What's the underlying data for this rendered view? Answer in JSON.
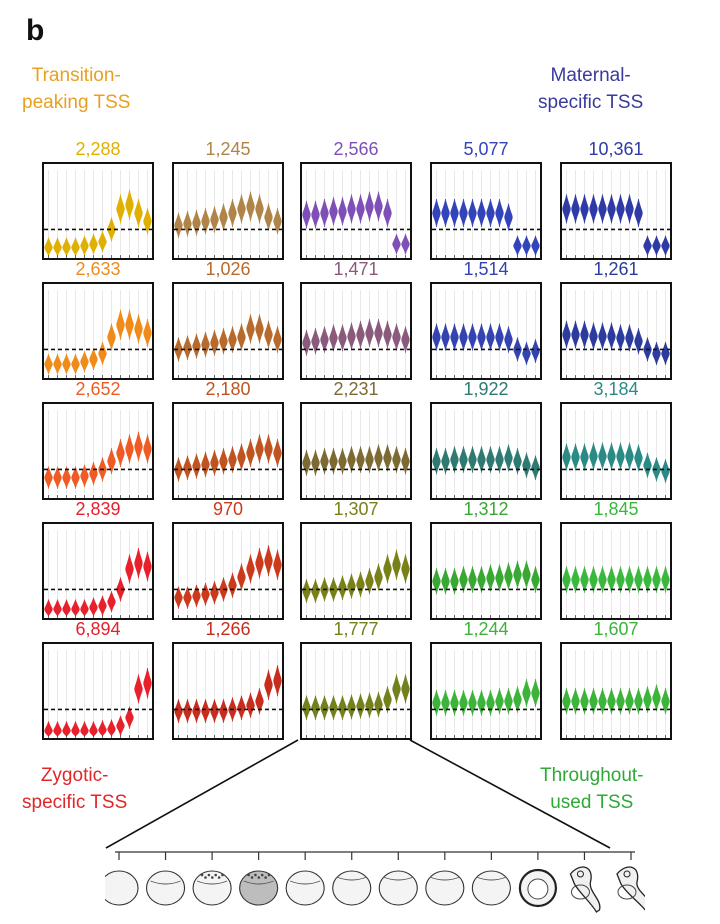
{
  "panel_label": "b",
  "corner_labels": {
    "top_left": [
      "Transition-",
      "peaking TSS"
    ],
    "top_right": [
      "Maternal-",
      "specific TSS"
    ],
    "bottom_left": [
      "Zygotic-",
      "specific TSS"
    ],
    "bottom_right": [
      "Throughout-",
      "used TSS"
    ]
  },
  "colors": {
    "top_left_label": "#e8a020",
    "top_right_label": "#3a3a9c",
    "bottom_left_label": "#e02828",
    "bottom_right_label": "#2ea836"
  },
  "chart_data": {
    "type": "violin-grid",
    "rows": 5,
    "cols": 5,
    "stages": 12,
    "baseline": 0.3,
    "ylim": [
      0,
      1
    ],
    "cells": [
      {
        "label": "2,288",
        "color": "#e0b000",
        "values": [
          0.08,
          0.08,
          0.08,
          0.08,
          0.1,
          0.12,
          0.15,
          0.3,
          0.55,
          0.6,
          0.5,
          0.4
        ]
      },
      {
        "label": "1,245",
        "color": "#b08448",
        "values": [
          0.35,
          0.37,
          0.38,
          0.4,
          0.42,
          0.45,
          0.5,
          0.55,
          0.58,
          0.55,
          0.45,
          0.4
        ]
      },
      {
        "label": "2,566",
        "color": "#7e4fb8",
        "values": [
          0.48,
          0.48,
          0.5,
          0.52,
          0.52,
          0.55,
          0.55,
          0.58,
          0.58,
          0.5,
          0.12,
          0.12
        ]
      },
      {
        "label": "5,077",
        "color": "#3344bb",
        "values": [
          0.5,
          0.5,
          0.5,
          0.5,
          0.5,
          0.5,
          0.5,
          0.5,
          0.45,
          0.1,
          0.1,
          0.1
        ]
      },
      {
        "label": "10,361",
        "color": "#2e3aa6",
        "values": [
          0.55,
          0.55,
          0.55,
          0.55,
          0.55,
          0.55,
          0.55,
          0.55,
          0.5,
          0.1,
          0.1,
          0.1
        ]
      },
      {
        "label": "2,633",
        "color": "#f08a18",
        "values": [
          0.12,
          0.12,
          0.12,
          0.12,
          0.15,
          0.18,
          0.25,
          0.45,
          0.6,
          0.6,
          0.55,
          0.5
        ]
      },
      {
        "label": "1,026",
        "color": "#b86a2c",
        "values": [
          0.3,
          0.32,
          0.34,
          0.36,
          0.38,
          0.4,
          0.42,
          0.45,
          0.55,
          0.55,
          0.48,
          0.42
        ]
      },
      {
        "label": "1,471",
        "color": "#8a5a7c",
        "values": [
          0.38,
          0.4,
          0.42,
          0.44,
          0.44,
          0.46,
          0.48,
          0.5,
          0.5,
          0.48,
          0.45,
          0.42
        ]
      },
      {
        "label": "1,514",
        "color": "#3344b0",
        "values": [
          0.45,
          0.45,
          0.45,
          0.45,
          0.45,
          0.45,
          0.45,
          0.45,
          0.42,
          0.3,
          0.25,
          0.28
        ]
      },
      {
        "label": "1,261",
        "color": "#2c3c9e",
        "values": [
          0.48,
          0.48,
          0.48,
          0.46,
          0.46,
          0.46,
          0.44,
          0.44,
          0.4,
          0.3,
          0.25,
          0.25
        ]
      },
      {
        "label": "2,652",
        "color": "#f05a24",
        "values": [
          0.2,
          0.2,
          0.2,
          0.2,
          0.22,
          0.25,
          0.3,
          0.4,
          0.5,
          0.55,
          0.58,
          0.55
        ]
      },
      {
        "label": "2,180",
        "color": "#c05420",
        "values": [
          0.3,
          0.32,
          0.34,
          0.36,
          0.38,
          0.4,
          0.42,
          0.45,
          0.5,
          0.55,
          0.55,
          0.5
        ]
      },
      {
        "label": "2,231",
        "color": "#7c6a32",
        "values": [
          0.38,
          0.38,
          0.4,
          0.4,
          0.4,
          0.42,
          0.42,
          0.42,
          0.44,
          0.44,
          0.42,
          0.4
        ]
      },
      {
        "label": "1,922",
        "color": "#2e7a72",
        "values": [
          0.4,
          0.4,
          0.42,
          0.42,
          0.42,
          0.42,
          0.42,
          0.42,
          0.44,
          0.4,
          0.35,
          0.32
        ]
      },
      {
        "label": "3,184",
        "color": "#2a8a86",
        "values": [
          0.45,
          0.45,
          0.45,
          0.46,
          0.46,
          0.46,
          0.46,
          0.46,
          0.44,
          0.35,
          0.3,
          0.28
        ]
      },
      {
        "label": "2,839",
        "color": "#e8202c",
        "values": [
          0.06,
          0.06,
          0.06,
          0.06,
          0.06,
          0.08,
          0.1,
          0.15,
          0.3,
          0.55,
          0.62,
          0.58
        ]
      },
      {
        "label": "970",
        "color": "#cc3a1c",
        "values": [
          0.2,
          0.2,
          0.22,
          0.24,
          0.26,
          0.3,
          0.35,
          0.45,
          0.55,
          0.62,
          0.65,
          0.6
        ]
      },
      {
        "label": "1,307",
        "color": "#7a8018",
        "values": [
          0.28,
          0.28,
          0.3,
          0.3,
          0.32,
          0.34,
          0.36,
          0.4,
          0.45,
          0.55,
          0.6,
          0.55
        ]
      },
      {
        "label": "1,312",
        "color": "#38a832",
        "values": [
          0.4,
          0.4,
          0.4,
          0.42,
          0.42,
          0.42,
          0.44,
          0.44,
          0.46,
          0.48,
          0.48,
          0.42
        ]
      },
      {
        "label": "1,845",
        "color": "#3ab83c",
        "values": [
          0.42,
          0.42,
          0.42,
          0.42,
          0.42,
          0.42,
          0.42,
          0.42,
          0.42,
          0.42,
          0.42,
          0.42
        ]
      },
      {
        "label": "6,894",
        "color": "#e8202c",
        "values": [
          0.04,
          0.04,
          0.04,
          0.04,
          0.04,
          0.04,
          0.05,
          0.06,
          0.1,
          0.2,
          0.55,
          0.62
        ]
      },
      {
        "label": "1,266",
        "color": "#c82c1c",
        "values": [
          0.28,
          0.28,
          0.28,
          0.28,
          0.28,
          0.28,
          0.3,
          0.32,
          0.35,
          0.4,
          0.6,
          0.65
        ]
      },
      {
        "label": "1,777",
        "color": "#74801c",
        "values": [
          0.32,
          0.32,
          0.32,
          0.32,
          0.32,
          0.33,
          0.34,
          0.35,
          0.36,
          0.42,
          0.55,
          0.55
        ]
      },
      {
        "label": "1,244",
        "color": "#3cb43a",
        "values": [
          0.38,
          0.38,
          0.38,
          0.38,
          0.38,
          0.38,
          0.38,
          0.4,
          0.4,
          0.42,
          0.5,
          0.5
        ]
      },
      {
        "label": "1,607",
        "color": "#3cb43a",
        "values": [
          0.4,
          0.4,
          0.4,
          0.4,
          0.4,
          0.4,
          0.4,
          0.4,
          0.4,
          0.42,
          0.44,
          0.4
        ]
      }
    ],
    "zoom_cell": 22,
    "embryo_stages": 12
  }
}
